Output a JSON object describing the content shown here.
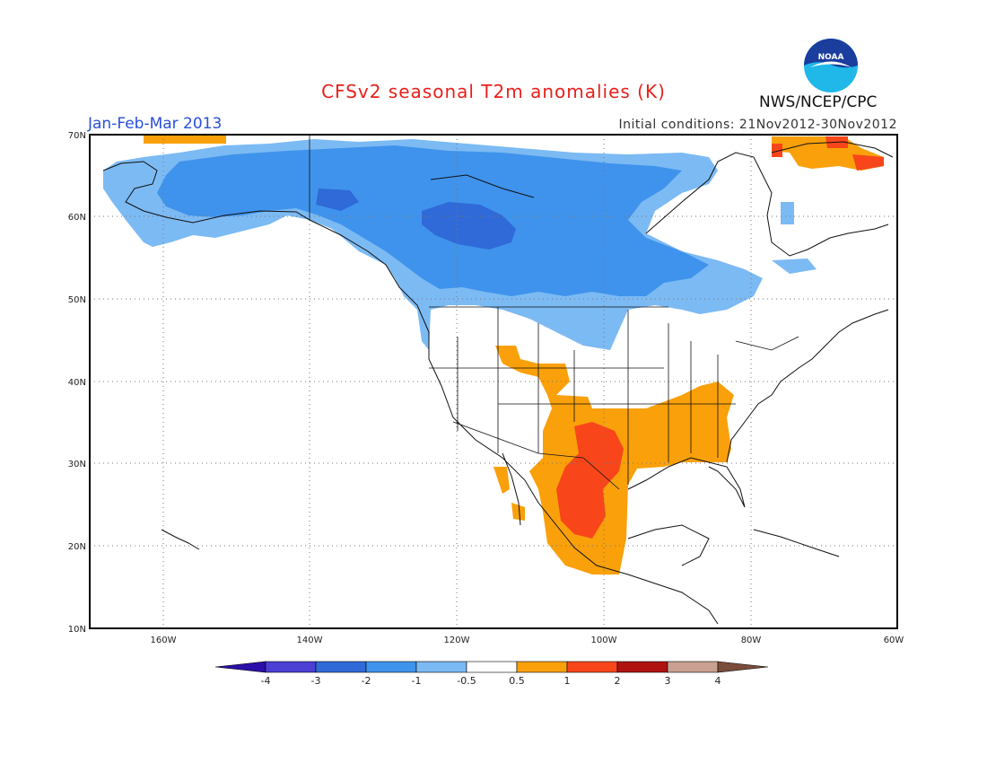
{
  "header": {
    "title": "CFSv2 seasonal T2m anomalies (K)",
    "period": "Jan-Feb-Mar 2013",
    "initial_conditions": "Initial conditions: 21Nov2012-30Nov2012",
    "agency": "NWS/NCEP/CPC",
    "logo_text": "NOAA"
  },
  "map": {
    "extent": {
      "lon": [
        -170,
        -60
      ],
      "lat": [
        10,
        70
      ]
    },
    "lat_labels": [
      "70N",
      "60N",
      "50N",
      "40N",
      "30N",
      "20N",
      "10N"
    ],
    "lon_labels": [
      "160W",
      "140W",
      "120W",
      "100W",
      "80W",
      "60W"
    ],
    "grid": "dotted"
  },
  "colorbar": {
    "labels": [
      "-4",
      "-3",
      "-2",
      "-1",
      "-0.5",
      "0.5",
      "1",
      "2",
      "3",
      "4"
    ],
    "colors": [
      "#2b0fa8",
      "#4b3fd4",
      "#2f6ad8",
      "#3f93ec",
      "#7cbaf4",
      "#ffffff",
      "#f9a00a",
      "#f8461a",
      "#b01212",
      "#c9a091",
      "#7a4c3c"
    ]
  }
}
